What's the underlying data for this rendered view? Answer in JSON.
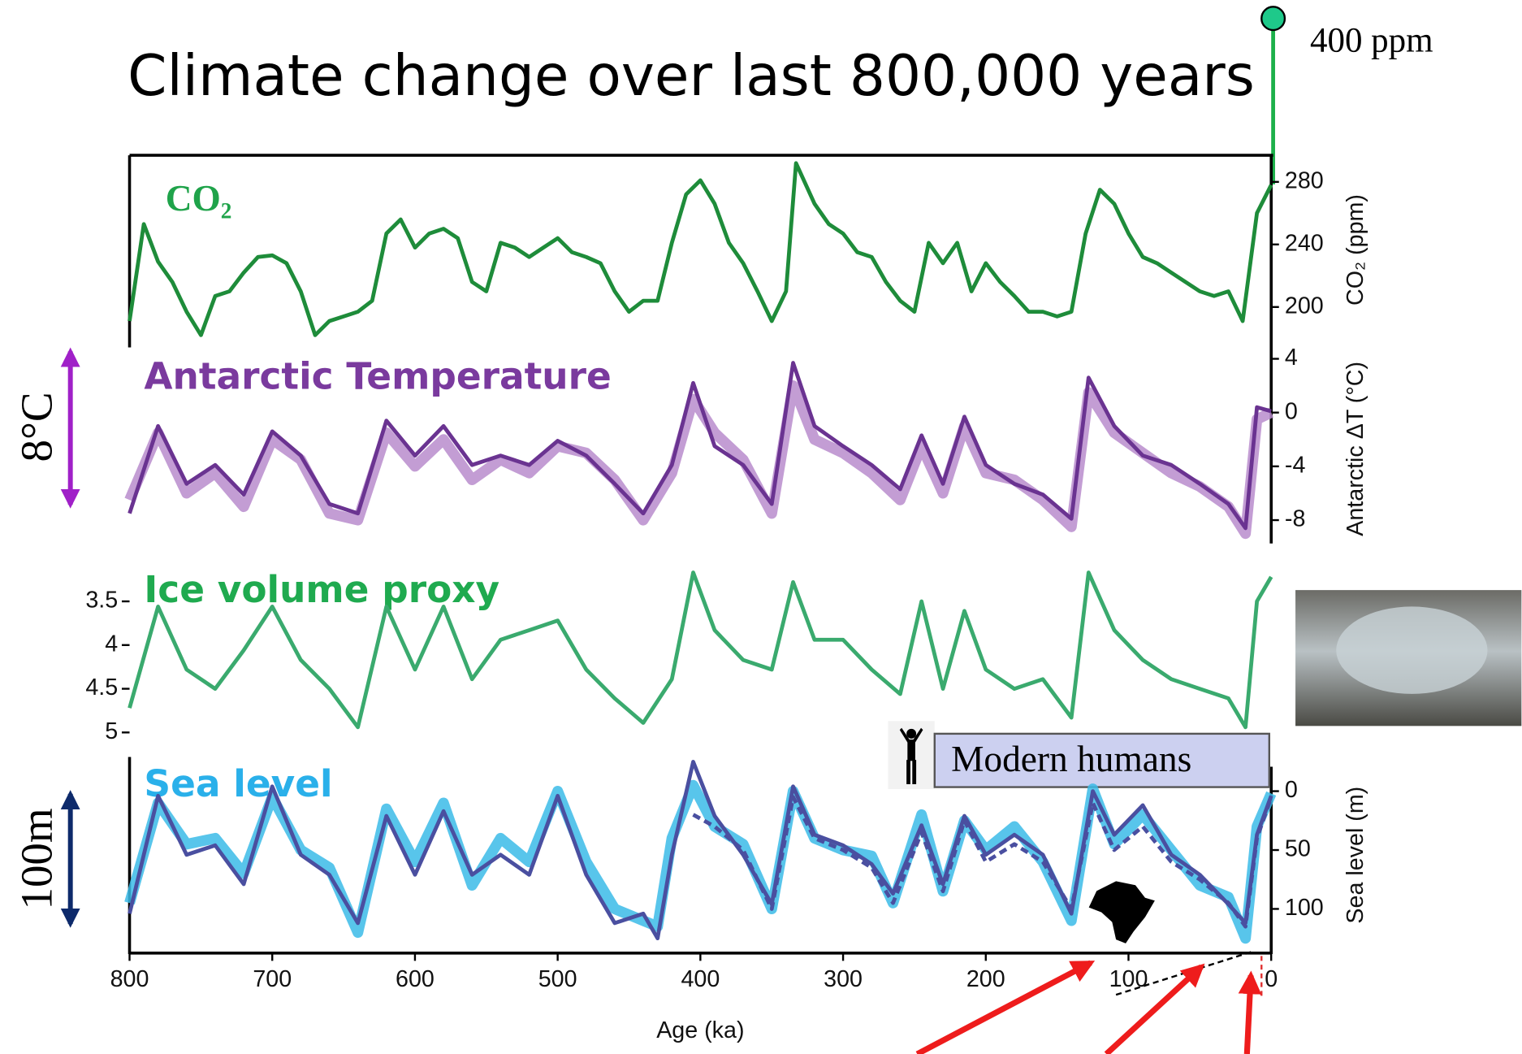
{
  "title": "Climate change over last 800,000 years",
  "annotations": {
    "co2_now": "400 ppm",
    "temp_range": "8°C",
    "sea_range": "100m",
    "humans": "Modern humans"
  },
  "chart_data": [
    {
      "type": "line",
      "label": "CO₂",
      "label_color": "#1fa34a",
      "ylabel": "CO₂ (ppm)",
      "yaxis_side": "right",
      "xlim": [
        800,
        0
      ],
      "ylim": [
        176,
        297
      ],
      "yticks": [
        200,
        240,
        280
      ],
      "x": [
        800,
        790,
        780,
        770,
        760,
        750,
        740,
        730,
        720,
        710,
        700,
        690,
        680,
        670,
        660,
        650,
        640,
        630,
        620,
        610,
        600,
        590,
        580,
        570,
        560,
        550,
        540,
        530,
        520,
        510,
        500,
        490,
        480,
        470,
        460,
        450,
        440,
        430,
        420,
        410,
        400,
        390,
        380,
        370,
        360,
        350,
        340,
        333,
        320,
        310,
        300,
        290,
        280,
        270,
        260,
        250,
        240,
        230,
        220,
        210,
        200,
        190,
        180,
        170,
        160,
        150,
        140,
        130,
        120,
        110,
        100,
        90,
        80,
        70,
        60,
        50,
        40,
        30,
        20,
        10,
        0
      ],
      "series": [
        {
          "color": "#1e8c3a",
          "line_style": "solid",
          "values": [
            191,
            253,
            229,
            216,
            197,
            182,
            207,
            210,
            222,
            232,
            233,
            228,
            210,
            182,
            191,
            194,
            197,
            204,
            247,
            256,
            238,
            247,
            250,
            244,
            216,
            210,
            241,
            238,
            232,
            238,
            244,
            235,
            232,
            228,
            210,
            197,
            204,
            204,
            241,
            272,
            281,
            266,
            241,
            228,
            210,
            191,
            210,
            292,
            266,
            253,
            247,
            235,
            232,
            216,
            204,
            197,
            241,
            228,
            241,
            210,
            228,
            216,
            207,
            197,
            197,
            194,
            197,
            247,
            275,
            266,
            247,
            232,
            228,
            222,
            216,
            210,
            207,
            210,
            191,
            260,
            278
          ]
        }
      ]
    },
    {
      "type": "line",
      "label": "Antarctic Temperature",
      "label_color": "#7a3a9e",
      "ylabel": "Antarctic ΔT (°C)",
      "yaxis_side": "right",
      "xlim": [
        800,
        0
      ],
      "ylim": [
        -10.1,
        4.7
      ],
      "yticks": [
        4,
        0,
        -4,
        -8
      ],
      "x": [
        800,
        780,
        760,
        740,
        720,
        700,
        680,
        660,
        640,
        620,
        600,
        580,
        560,
        540,
        520,
        500,
        480,
        460,
        440,
        420,
        405,
        390,
        370,
        350,
        335,
        320,
        300,
        280,
        260,
        245,
        230,
        215,
        200,
        180,
        160,
        140,
        128,
        110,
        90,
        70,
        50,
        30,
        18,
        10,
        0
      ],
      "series": [
        {
          "color": "#b98ccc",
          "line_style": "band",
          "values": [
            -6.5,
            -1.5,
            -6,
            -4.5,
            -7,
            -2,
            -3.5,
            -7.5,
            -8,
            -1.5,
            -4,
            -2,
            -5,
            -3.5,
            -4.5,
            -2.5,
            -3,
            -5,
            -8,
            -4.5,
            1,
            -1.5,
            -3.5,
            -7.5,
            2,
            -2,
            -3,
            -4.5,
            -6.5,
            -2.5,
            -6,
            -1,
            -4.5,
            -5,
            -6.5,
            -8.5,
            1.5,
            -1.5,
            -3,
            -4.5,
            -5.5,
            -7,
            -9,
            -0.5,
            0
          ]
        },
        {
          "color": "#6a3391",
          "line_style": "solid",
          "values": [
            -7.5,
            -1.0,
            -5.3,
            -3.9,
            -6.1,
            -1.4,
            -3.2,
            -6.8,
            -7.5,
            -0.6,
            -3.2,
            -1.0,
            -3.9,
            -3.2,
            -3.9,
            -2.1,
            -3.2,
            -5.3,
            -7.5,
            -3.9,
            2.2,
            -2.5,
            -3.9,
            -6.8,
            3.7,
            -1.0,
            -2.5,
            -3.9,
            -5.7,
            -1.7,
            -5.3,
            -0.3,
            -3.9,
            -5.3,
            -6.1,
            -7.9,
            2.6,
            -1.0,
            -3.2,
            -3.9,
            -5.3,
            -6.8,
            -8.6,
            0.4,
            0.1
          ]
        }
      ]
    },
    {
      "type": "line",
      "label": "Ice volume proxy",
      "label_color": "#1faa4f",
      "yaxis_side": "left",
      "xlim": [
        800,
        0
      ],
      "ylim": [
        5.17,
        3.06
      ],
      "yticks": [
        3.5,
        4,
        4.5,
        5
      ],
      "x": [
        800,
        780,
        760,
        740,
        720,
        700,
        680,
        660,
        640,
        620,
        600,
        580,
        560,
        540,
        520,
        500,
        480,
        460,
        440,
        420,
        405,
        390,
        370,
        350,
        335,
        320,
        300,
        280,
        260,
        245,
        230,
        215,
        200,
        180,
        160,
        140,
        128,
        110,
        90,
        70,
        50,
        30,
        18,
        10,
        0
      ],
      "series": [
        {
          "color": "#3aaa6e",
          "line_style": "solid",
          "values": [
            4.72,
            3.56,
            4.28,
            4.5,
            4.06,
            3.56,
            4.17,
            4.5,
            4.94,
            3.56,
            4.28,
            3.56,
            4.39,
            3.94,
            3.83,
            3.72,
            4.28,
            4.61,
            4.89,
            4.39,
            3.17,
            3.83,
            4.17,
            4.28,
            3.28,
            3.94,
            3.94,
            4.28,
            4.56,
            3.5,
            4.5,
            3.61,
            4.28,
            4.5,
            4.39,
            4.83,
            3.17,
            3.83,
            4.17,
            4.39,
            4.5,
            4.61,
            4.94,
            3.5,
            3.22
          ]
        }
      ]
    },
    {
      "type": "line",
      "label": "Sea level",
      "label_color": "#2ab0ea",
      "ylabel": "Sea level (m)",
      "yaxis_side": "right",
      "xlim": [
        800,
        0
      ],
      "ylim": [
        137.5,
        -29
      ],
      "yticks": [
        0,
        50,
        100
      ],
      "xticks": [
        800,
        700,
        600,
        500,
        400,
        300,
        200,
        100,
        0
      ],
      "xlabel": "Age (ka)",
      "x": [
        800,
        780,
        760,
        740,
        720,
        700,
        680,
        660,
        640,
        620,
        600,
        580,
        560,
        540,
        520,
        500,
        480,
        460,
        440,
        430,
        420,
        405,
        390,
        370,
        350,
        335,
        320,
        300,
        280,
        265,
        245,
        230,
        215,
        200,
        180,
        160,
        140,
        125,
        110,
        90,
        70,
        50,
        30,
        18,
        10,
        0
      ],
      "series": [
        {
          "color": "#3bbbe8",
          "line_style": "band",
          "values": [
            95,
            10,
            45,
            40,
            70,
            5,
            50,
            65,
            120,
            15,
            60,
            10,
            80,
            40,
            60,
            0,
            60,
            100,
            110,
            115,
            40,
            -5,
            30,
            45,
            100,
            0,
            40,
            50,
            55,
            95,
            20,
            85,
            25,
            50,
            30,
            60,
            110,
            -2,
            45,
            20,
            50,
            80,
            90,
            125,
            30,
            2
          ]
        },
        {
          "color": "#4a4fa0",
          "line_style": "solid",
          "values": [
            104,
            4,
            54,
            46,
            79,
            -4,
            54,
            71,
            112,
            21,
            71,
            17,
            71,
            54,
            71,
            4,
            71,
            112,
            104,
            125,
            54,
            -25,
            21,
            54,
            96,
            -4,
            37,
            46,
            62,
            87,
            29,
            79,
            21,
            54,
            37,
            54,
            104,
            0,
            37,
            12,
            54,
            71,
            96,
            112,
            37,
            4
          ]
        },
        {
          "color": "#4a4fa0",
          "line_style": "dashed",
          "values": [
            null,
            null,
            null,
            null,
            null,
            null,
            null,
            null,
            null,
            null,
            null,
            null,
            null,
            null,
            null,
            null,
            null,
            null,
            null,
            null,
            null,
            20,
            30,
            50,
            100,
            5,
            40,
            50,
            65,
            95,
            35,
            85,
            25,
            60,
            45,
            60,
            100,
            10,
            50,
            30,
            60,
            75,
            95,
            115,
            40,
            5
          ]
        }
      ]
    }
  ]
}
